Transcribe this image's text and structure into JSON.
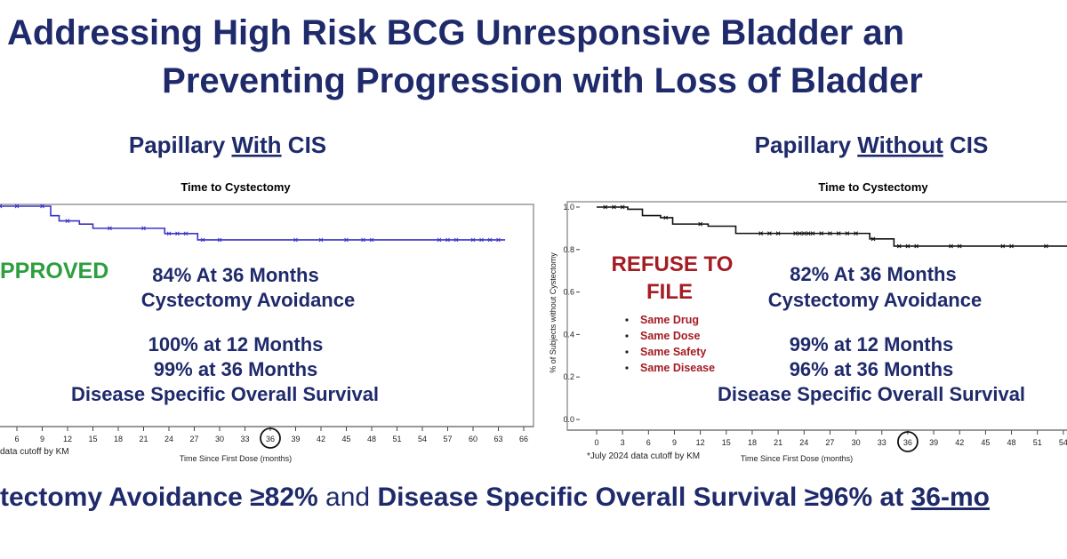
{
  "slide": {
    "title_line1": "Addressing High Risk BCG Unresponsive Bladder an",
    "title_line2": "Preventing Progression with Loss of Bladder",
    "colors": {
      "navy": "#1f2a6b",
      "approved_green": "#2e9e3e",
      "refuse_red": "#a51c24",
      "left_curve": "#3a35c8",
      "right_curve": "#111111"
    },
    "bottom": {
      "part1": "tectomy Avoidance ≥82%",
      "part2": " and ",
      "part3": "Disease Specific Overall Survival ≥96% at ",
      "part4": "36-mo"
    }
  },
  "left_panel": {
    "heading_pre": "Papillary ",
    "heading_em": "With",
    "heading_post": " CIS",
    "status": "PPROVED",
    "stat1": "84% At 36 Months",
    "stat2": "Cystectomy Avoidance",
    "stat3": "100% at 12 Months",
    "stat4": "99% at 36 Months",
    "stat5": "Disease Specific Overall Survival",
    "footnote": "data cutoff by KM"
  },
  "right_panel": {
    "heading_pre": "Papillary ",
    "heading_em": "Without",
    "heading_post": " CIS",
    "status_line1": "REFUSE TO",
    "status_line2": "FILE",
    "bullets": [
      "Same Drug",
      "Same Dose",
      "Same Safety",
      "Same Disease"
    ],
    "stat1": "82% At 36 Months",
    "stat2": "Cystectomy Avoidance",
    "stat3": "99% at 12 Months",
    "stat4": "96% at 36 Months",
    "stat5": "Disease Specific Overall Survival",
    "footnote": "*July 2024 data cutoff by KM"
  },
  "chart_data": [
    {
      "type": "line",
      "title": "Time to Cystectomy",
      "xlabel": "Time Since First Dose (months)",
      "ylabel": "",
      "xticks": [
        6,
        9,
        12,
        15,
        18,
        21,
        24,
        27,
        30,
        33,
        36,
        39,
        42,
        45,
        48,
        51,
        54,
        57,
        60,
        63,
        66
      ],
      "highlight_tick": 36,
      "ylim": [
        0,
        1
      ],
      "step": true,
      "series": [
        {
          "x": [
            0,
            10,
            11,
            13.4,
            15,
            23.5,
            27.4,
            31.5,
            63.8
          ],
          "y": [
            1.0,
            0.955,
            0.93,
            0.915,
            0.895,
            0.87,
            0.84,
            0.84,
            0.84
          ],
          "censored": [
            2,
            4,
            6,
            9,
            12,
            17,
            21,
            24,
            25,
            26,
            28,
            30,
            39,
            42,
            45,
            47,
            48,
            56,
            57,
            58,
            60,
            61,
            62,
            63
          ]
        }
      ]
    },
    {
      "type": "line",
      "title": "Time to Cystectomy",
      "xlabel": "Time Since First Dose (months)",
      "ylabel": "% of Subjects without Cystectomy",
      "xticks": [
        0,
        3,
        6,
        9,
        12,
        15,
        18,
        21,
        24,
        27,
        30,
        33,
        36,
        39,
        42,
        45,
        48,
        51,
        54
      ],
      "yticks": [
        "0.0",
        "0.2",
        "0.4",
        "0.6",
        "0.8",
        "1.0"
      ],
      "highlight_tick": 36,
      "ylim": [
        0,
        1
      ],
      "step": true,
      "series": [
        {
          "x": [
            0,
            3.6,
            5.3,
            7.4,
            8.8,
            12.9,
            16.1,
            31.6,
            34.4,
            55
          ],
          "y": [
            1.0,
            0.99,
            0.96,
            0.95,
            0.92,
            0.91,
            0.876,
            0.85,
            0.816,
            0.816
          ],
          "censored": [
            1,
            2,
            3,
            8,
            12,
            19,
            20,
            21,
            23,
            23.5,
            24,
            24.5,
            25,
            26,
            27,
            28,
            29,
            30,
            32,
            35,
            36,
            37,
            41,
            42,
            47,
            48,
            52,
            55
          ]
        }
      ]
    }
  ]
}
